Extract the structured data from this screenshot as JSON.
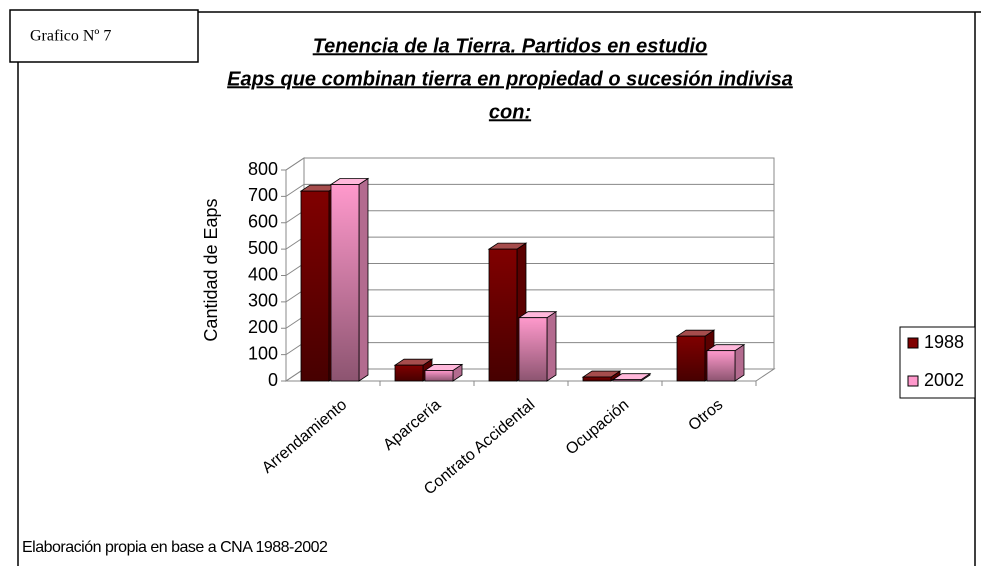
{
  "header": {
    "label": "Grafico Nº 7"
  },
  "chart_data": {
    "type": "bar3d",
    "title": [
      "Tenencia de la Tierra. Partidos en estudio",
      "Eaps que combinan tierra en propiedad o sucesión indivisa",
      "con:"
    ],
    "y_label": "Cantidad de Eaps",
    "categories": [
      "Arrendamiento",
      "Aparcería",
      "Contrato Accidental",
      "Ocupación",
      "Otros"
    ],
    "series": [
      {
        "name": "1988",
        "color": "#800000",
        "values": [
          720,
          60,
          500,
          15,
          170
        ]
      },
      {
        "name": "2002",
        "color": "#ff99cc",
        "values": [
          745,
          40,
          240,
          5,
          115
        ]
      }
    ],
    "ylim": [
      0,
      800
    ],
    "yticks": [
      0,
      100,
      200,
      300,
      400,
      500,
      600,
      700,
      800
    ],
    "grid": true,
    "legend": "right"
  },
  "footer": {
    "note": "Elaboración propia en base a CNA 1988-2002"
  }
}
